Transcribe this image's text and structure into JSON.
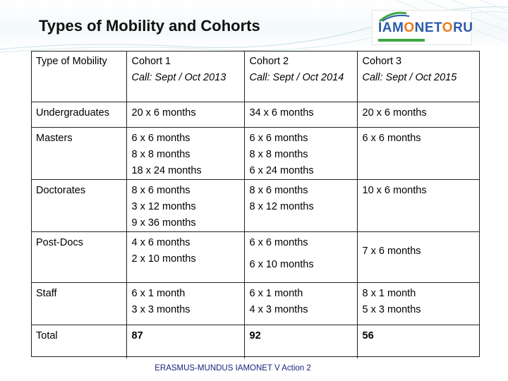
{
  "slide": {
    "title": "Types of Mobility and Cohorts",
    "footer": "ERASMUS-MUNDUS IAMONET V Action 2"
  },
  "logo": {
    "text_part1": "IAM",
    "text_dot": "O",
    "text_part2": "NET",
    "text_dot2": "O",
    "text_part3": "RU",
    "colors": {
      "blue": "#2a5aa8",
      "orange": "#ee7a1a",
      "green": "#3ea843"
    }
  },
  "table": {
    "header": {
      "type": "Type of Mobility",
      "cohort1_name": "Cohort 1",
      "cohort1_call": "Call: Sept / Oct 2013",
      "cohort2_name": "Cohort 2",
      "cohort2_call": "Call: Sept / Oct 2014",
      "cohort3_name": "Cohort 3",
      "cohort3_call": "Call: Sept / Oct 2015"
    },
    "rows": [
      {
        "type": "Undergraduates",
        "c1": [
          "20 x 6 months"
        ],
        "c2": [
          "34 x 6 months"
        ],
        "c3": [
          "20 x 6 months"
        ]
      },
      {
        "type": "Masters",
        "c1": [
          "6 x 6 months",
          "8 x 8 months",
          "18 x 24 months"
        ],
        "c2": [
          "6 x 6 months",
          "8 x 8 months",
          "6 x 24 months"
        ],
        "c3": [
          "6 x 6 months"
        ]
      },
      {
        "type": "Doctorates",
        "c1": [
          "8 x 6 months",
          "3 x 12 months",
          "9 x 36 months"
        ],
        "c2": [
          "8 x 6 months",
          "8 x 12 months"
        ],
        "c3": [
          "10 x 6 months"
        ]
      },
      {
        "type": "Post-Docs",
        "c1": [
          "4 x 6 months",
          "2 x 10 months"
        ],
        "c2": [
          "6 x 6 months",
          "6 x 10 months"
        ],
        "c3": [
          "7 x 6 months"
        ]
      },
      {
        "type": "Staff",
        "c1": [
          "6 x 1 month",
          "3 x 3 months"
        ],
        "c2": [
          "6 x 1 month",
          "4 x 3 months"
        ],
        "c3": [
          "8 x 1 month",
          "5 x 3 months"
        ]
      },
      {
        "type": "Total",
        "c1": [
          "87"
        ],
        "c2": [
          "92"
        ],
        "c3": [
          "56"
        ]
      }
    ]
  }
}
